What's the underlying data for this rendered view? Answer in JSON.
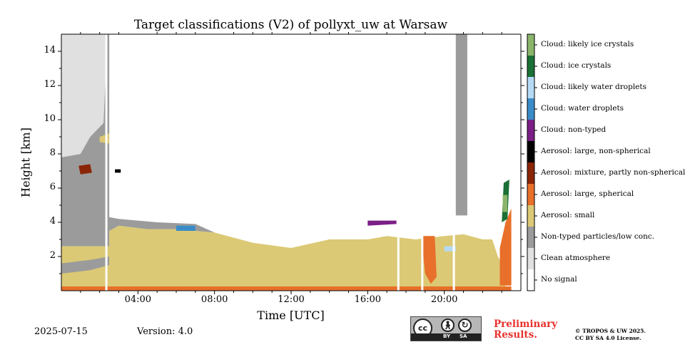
{
  "chart_data": {
    "type": "heatmap",
    "title": "Target classifications (V2) of pollyxt_uw at Warsaw",
    "xlabel": "Time [UTC]",
    "ylabel": "Height [km]",
    "xlim": [
      0,
      24
    ],
    "ylim": [
      0,
      15
    ],
    "x_ticks": [
      {
        "label": "04:00",
        "value": 4
      },
      {
        "label": "08:00",
        "value": 8
      },
      {
        "label": "12:00",
        "value": 12
      },
      {
        "label": "16:00",
        "value": 16
      },
      {
        "label": "20:00",
        "value": 20
      }
    ],
    "y_ticks": [
      {
        "label": "2",
        "value": 2
      },
      {
        "label": "4",
        "value": 4
      },
      {
        "label": "6",
        "value": 6
      },
      {
        "label": "8",
        "value": 8
      },
      {
        "label": "10",
        "value": 10
      },
      {
        "label": "12",
        "value": 12
      },
      {
        "label": "14",
        "value": 14
      }
    ],
    "classes": [
      {
        "label": "No signal",
        "color": "#ffffff"
      },
      {
        "label": "Clean atmosphere",
        "color": "#e0e0e0"
      },
      {
        "label": "Non-typed particles/low conc.",
        "color": "#9b9b9b"
      },
      {
        "label": "Aerosol: small",
        "color": "#dcc975"
      },
      {
        "label": "Aerosol: large, spherical",
        "color": "#e8702a"
      },
      {
        "label": "Aerosol: mixture, partly non-spherical",
        "color": "#8b2508"
      },
      {
        "label": "Aerosol: large, non-spherical",
        "color": "#000000"
      },
      {
        "label": "Cloud: non-typed",
        "color": "#7b1f86"
      },
      {
        "label": "Cloud: water droplets",
        "color": "#3a8cc8"
      },
      {
        "label": "Cloud: likely water droplets",
        "color": "#b5daf5"
      },
      {
        "label": "Cloud: ice crystals",
        "color": "#1a7035"
      },
      {
        "label": "Cloud: likely ice crystals",
        "color": "#8ab56b"
      }
    ],
    "regions": [
      {
        "class": "Aerosol: large, spherical",
        "points": [
          [
            0,
            0
          ],
          [
            23.5,
            0
          ],
          [
            23.5,
            0.25
          ],
          [
            0,
            0.25
          ]
        ]
      },
      {
        "class": "Aerosol: small",
        "points": [
          [
            0,
            0.25
          ],
          [
            23.2,
            0.25
          ],
          [
            23.2,
            1.2
          ],
          [
            22.8,
            2.0
          ],
          [
            22.5,
            3.0
          ],
          [
            22,
            3.0
          ],
          [
            21,
            3.3
          ],
          [
            20,
            3.2
          ],
          [
            18.5,
            3.0
          ],
          [
            17,
            3.2
          ],
          [
            16,
            3.0
          ],
          [
            14,
            3.0
          ],
          [
            12,
            2.5
          ],
          [
            10,
            2.8
          ],
          [
            8,
            3.4
          ],
          [
            6,
            3.6
          ],
          [
            4.5,
            3.6
          ],
          [
            3,
            3.8
          ],
          [
            2.5,
            3.5
          ],
          [
            2.5,
            2.6
          ],
          [
            0,
            2.6
          ]
        ]
      },
      {
        "class": "Non-typed particles/low conc.",
        "points": [
          [
            0,
            2.6
          ],
          [
            2.5,
            2.6
          ],
          [
            2.5,
            3.5
          ],
          [
            3,
            3.8
          ],
          [
            4.5,
            3.6
          ],
          [
            6,
            3.6
          ],
          [
            8,
            3.4
          ],
          [
            7,
            3.9
          ],
          [
            5,
            4.0
          ],
          [
            3,
            4.2
          ],
          [
            2.5,
            4.3
          ],
          [
            2.5,
            15
          ],
          [
            2.4,
            15
          ],
          [
            2.2,
            9.8
          ],
          [
            1.5,
            9.0
          ],
          [
            1.0,
            8.0
          ],
          [
            0,
            7.8
          ]
        ]
      },
      {
        "class": "Clean atmosphere",
        "points": [
          [
            0,
            7.8
          ],
          [
            1.0,
            8.0
          ],
          [
            1.5,
            9.0
          ],
          [
            2.2,
            9.8
          ],
          [
            2.4,
            15
          ],
          [
            0,
            15
          ]
        ]
      },
      {
        "class": "Non-typed particles/low conc.",
        "points": [
          [
            0,
            1.0
          ],
          [
            1.5,
            1.2
          ],
          [
            2.5,
            1.5
          ],
          [
            2.5,
            2.0
          ],
          [
            1.5,
            1.8
          ],
          [
            0,
            1.6
          ]
        ]
      },
      {
        "class": "Non-typed particles/low conc.",
        "points": [
          [
            20.6,
            4.4
          ],
          [
            20.6,
            15
          ],
          [
            21.2,
            15
          ],
          [
            21.2,
            4.4
          ]
        ]
      },
      {
        "class": "Aerosol: large, spherical",
        "points": [
          [
            18.8,
            3.2
          ],
          [
            19.0,
            1.0
          ],
          [
            19.3,
            0.4
          ],
          [
            19.6,
            0.8
          ],
          [
            19.5,
            3.2
          ]
        ]
      },
      {
        "class": "Aerosol: large, spherical",
        "points": [
          [
            22.9,
            0.3
          ],
          [
            23.5,
            0.3
          ],
          [
            23.5,
            4.8
          ],
          [
            23.2,
            4.0
          ],
          [
            22.9,
            2.5
          ]
        ]
      },
      {
        "class": "Aerosol: mixture, partly non-spherical",
        "points": [
          [
            0.9,
            7.3
          ],
          [
            1.5,
            7.4
          ],
          [
            1.6,
            6.9
          ],
          [
            1.0,
            6.8
          ]
        ]
      },
      {
        "class": "Aerosol: small",
        "points": [
          [
            2.0,
            9.0
          ],
          [
            2.5,
            9.2
          ],
          [
            2.5,
            8.6
          ],
          [
            2.0,
            8.7
          ]
        ]
      },
      {
        "class": "Cloud: ice crystals",
        "points": [
          [
            23.0,
            4.0
          ],
          [
            23.3,
            4.2
          ],
          [
            23.4,
            6.5
          ],
          [
            23.1,
            6.3
          ]
        ]
      },
      {
        "class": "Cloud: non-typed",
        "points": [
          [
            16,
            3.8
          ],
          [
            17.5,
            3.9
          ],
          [
            17.5,
            4.1
          ],
          [
            16,
            4.1
          ]
        ]
      },
      {
        "class": "Cloud: likely water droplets",
        "points": [
          [
            20,
            2.3
          ],
          [
            20.6,
            2.3
          ],
          [
            20.6,
            2.6
          ],
          [
            20,
            2.6
          ]
        ]
      },
      {
        "class": "Cloud: water droplets",
        "points": [
          [
            6,
            3.5
          ],
          [
            7,
            3.5
          ],
          [
            7,
            3.8
          ],
          [
            6,
            3.8
          ]
        ]
      },
      {
        "class": "Cloud: likely ice crystals",
        "points": [
          [
            23.05,
            4.6
          ],
          [
            23.3,
            4.6
          ],
          [
            23.3,
            5.6
          ],
          [
            23.05,
            5.6
          ]
        ]
      },
      {
        "class": "Aerosol: large, non-spherical",
        "points": [
          [
            2.8,
            6.9
          ],
          [
            3.1,
            6.9
          ],
          [
            3.1,
            7.1
          ],
          [
            2.8,
            7.1
          ]
        ]
      }
    ],
    "gaps": [
      2.35,
      17.6,
      18.85,
      20.5
    ]
  },
  "footer": {
    "date": "2025-07-15",
    "version": "Version: 4.0",
    "preliminary_line1": "Preliminary",
    "preliminary_line2": "Results.",
    "copyright_line1": "© TROPOS & UW 2025.",
    "copyright_line2": "CC BY SA 4.0 License."
  },
  "license_badge": {
    "cc": "cc",
    "by": "BY",
    "sa": "SA"
  }
}
